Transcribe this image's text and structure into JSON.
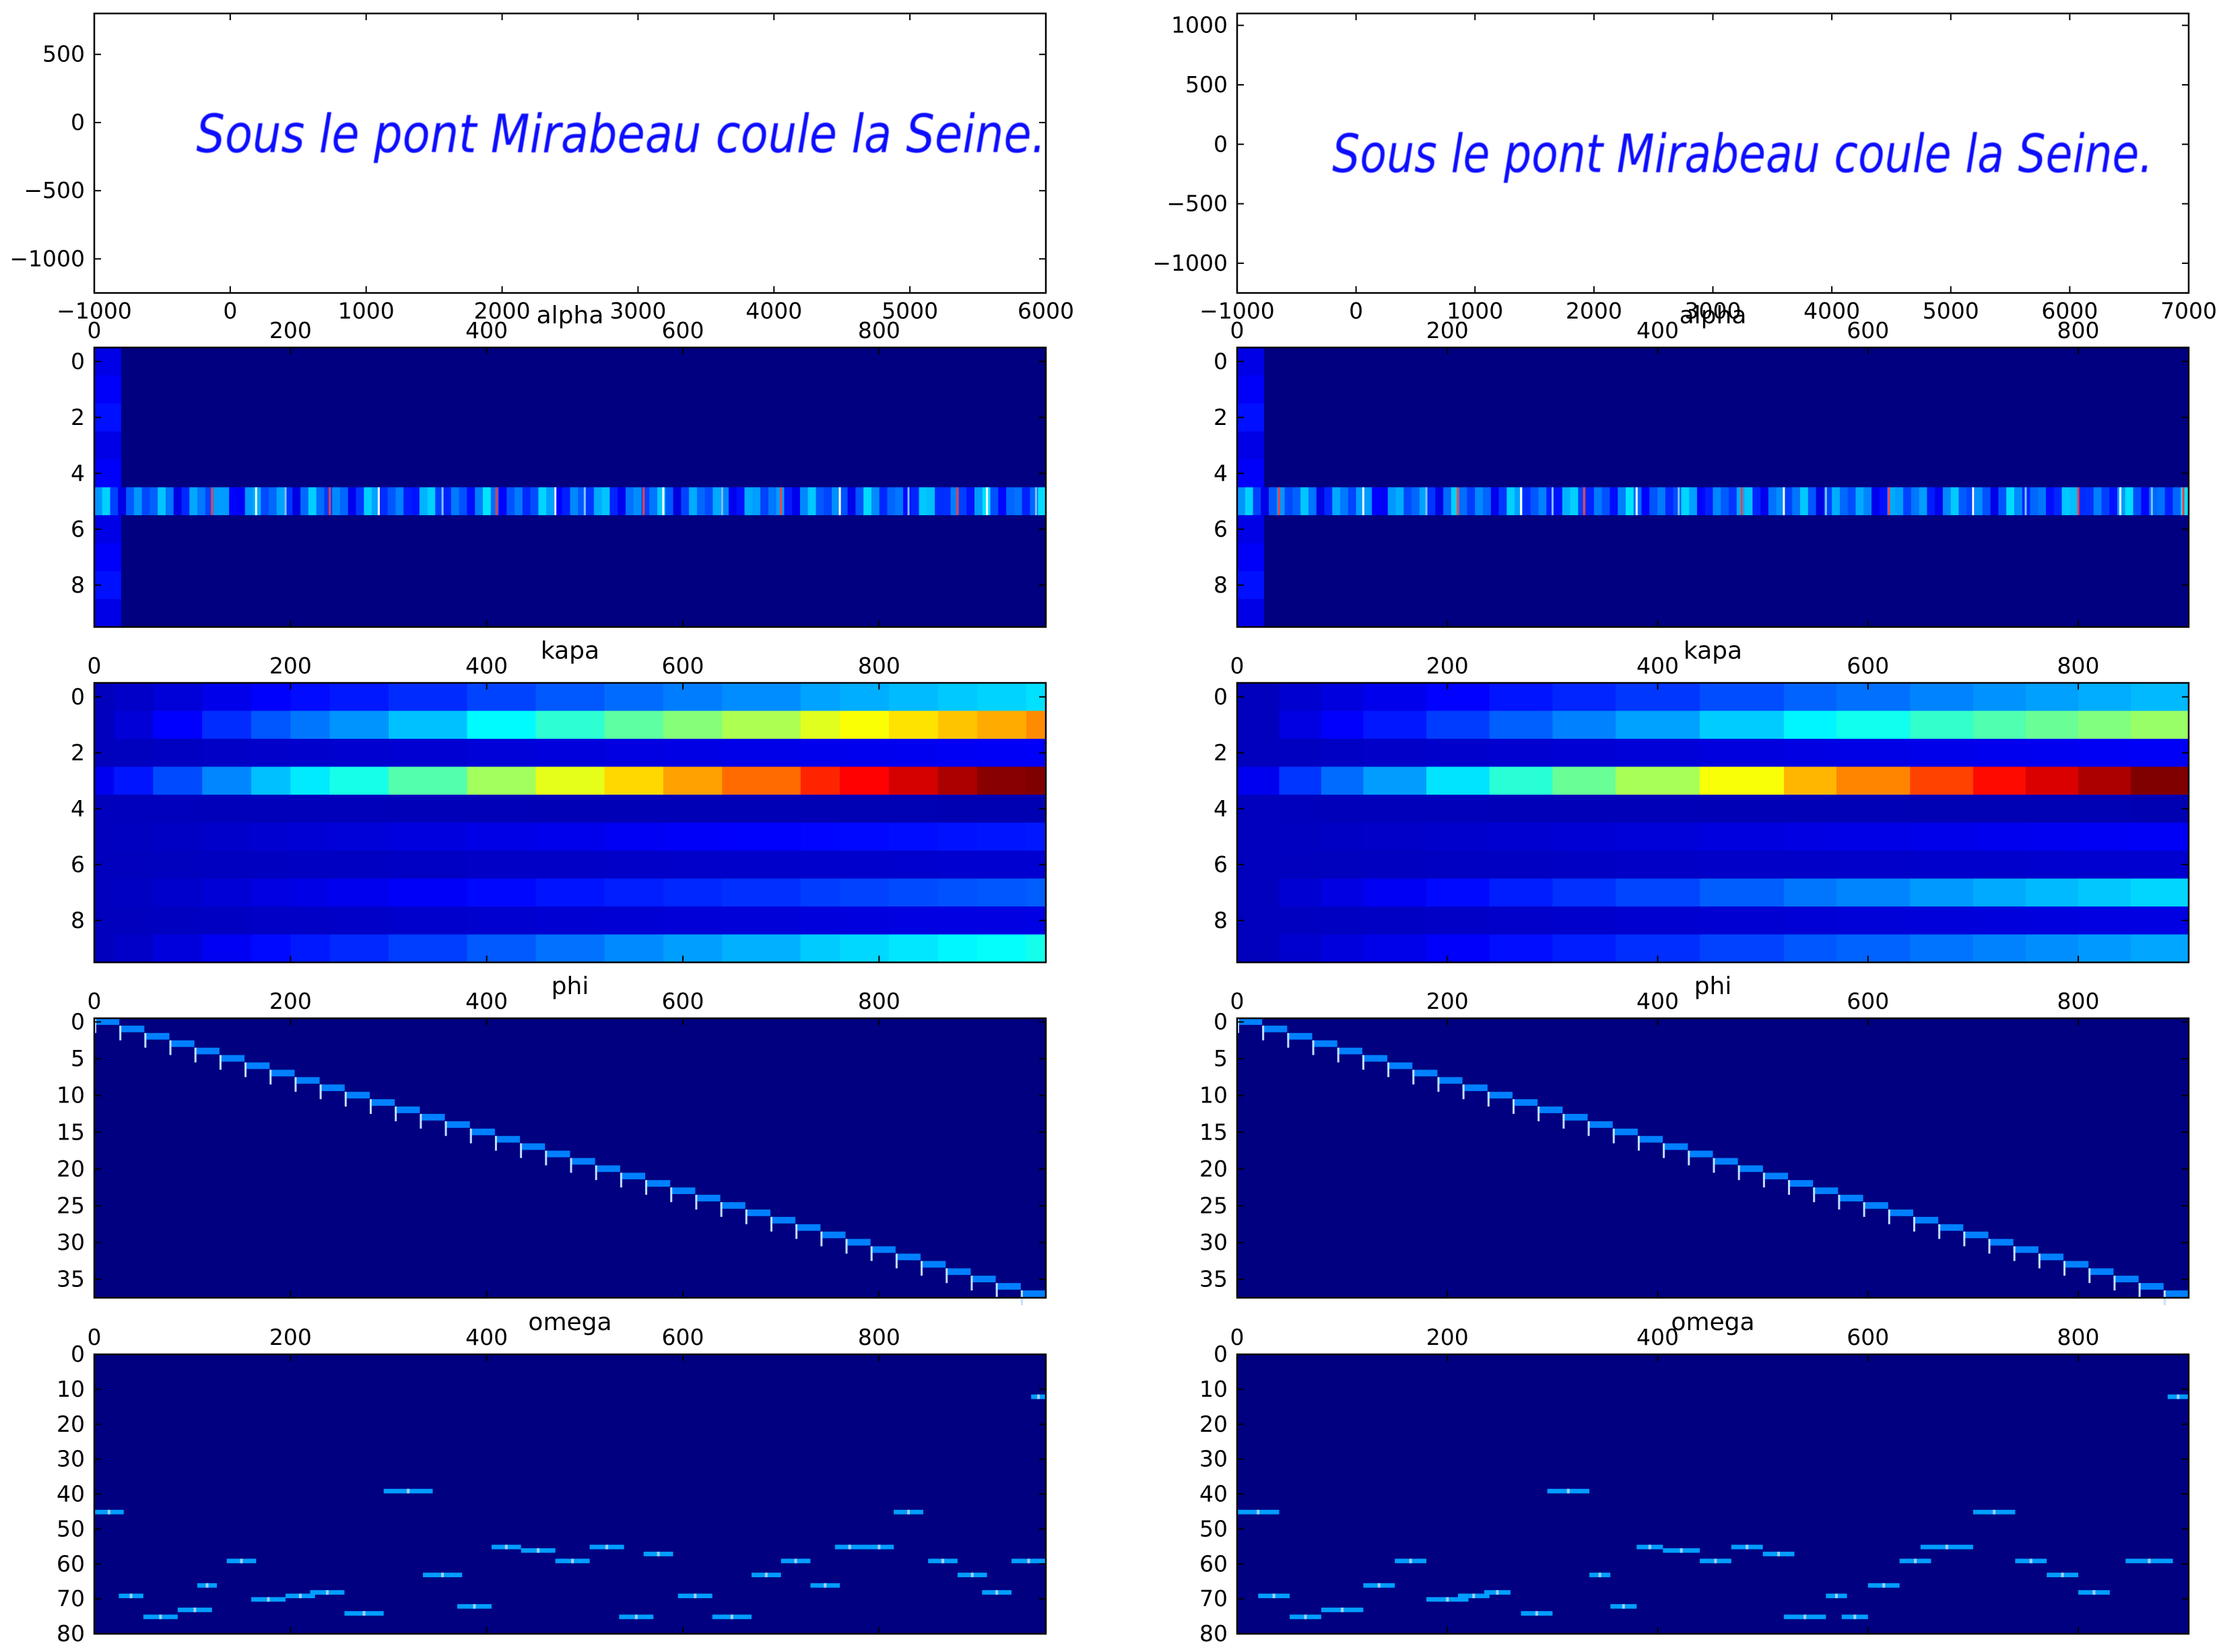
{
  "colors": {
    "ink": "#0a0aff",
    "jet_background": "#000080",
    "axes": "#000000"
  },
  "chart_data": [
    {
      "type": "line",
      "title": "",
      "xlabel": "",
      "ylabel": "",
      "xlim": [
        -1000,
        6000
      ],
      "ylim": [
        -1250,
        800
      ],
      "xticks": [
        "−1000",
        "0",
        "1000",
        "2000",
        "3000",
        "4000",
        "5000",
        "6000"
      ],
      "yticks": [
        "500",
        "0",
        "−500",
        "−1000"
      ],
      "annotation": "Sous le pont Mirabeau coule la Seine.",
      "annotation_style": "handwritten stroke",
      "annotation_x_range": [
        -250,
        6000
      ],
      "annotation_y_center": -120,
      "series": [
        {
          "values_description_only": "handwriting pen trajectory"
        }
      ]
    },
    {
      "type": "line",
      "title": "",
      "xlabel": "",
      "ylabel": "",
      "xlim": [
        -1000,
        7000
      ],
      "ylim": [
        -1250,
        1100
      ],
      "xticks": [
        "−1000",
        "0",
        "1000",
        "2000",
        "3000",
        "4000",
        "5000",
        "6000",
        "7000"
      ],
      "yticks": [
        "1000",
        "500",
        "0",
        "−500",
        "−1000"
      ],
      "annotation": "Sous le pont Mirabeau coule la Seine.",
      "annotation_style": "handwritten stroke",
      "annotation_x_range": [
        -200,
        6700
      ],
      "annotation_y_center": -120,
      "series": [
        {
          "values_description_only": "handwriting pen trajectory"
        }
      ]
    },
    {
      "type": "heatmap",
      "title": "alpha",
      "xlim": [
        0,
        970
      ],
      "ylim": [
        9.5,
        -0.5
      ],
      "xticks": [
        "0",
        "200",
        "400",
        "600",
        "800"
      ],
      "yticks": [
        "0",
        "2",
        "4",
        "6",
        "8"
      ],
      "rows": 10,
      "active_row": 5,
      "spikes": [
        120,
        165,
        195,
        240,
        290,
        355,
        410,
        470,
        500,
        560,
        580,
        640,
        700,
        760,
        830,
        880,
        910,
        960
      ]
    },
    {
      "type": "heatmap",
      "title": "alpha",
      "xlim": [
        0,
        905
      ],
      "ylim": [
        9.5,
        -0.5
      ],
      "xticks": [
        "0",
        "200",
        "400",
        "600",
        "800"
      ],
      "yticks": [
        "0",
        "2",
        "4",
        "6",
        "8"
      ],
      "rows": 10,
      "active_row": 5,
      "spikes": [
        40,
        120,
        180,
        210,
        270,
        300,
        330,
        380,
        420,
        480,
        520,
        560,
        620,
        700,
        750,
        800,
        840,
        870,
        900
      ]
    },
    {
      "type": "heatmap",
      "title": "kapa",
      "xlim": [
        0,
        970
      ],
      "ylim": [
        9.5,
        -0.5
      ],
      "xticks": [
        "0",
        "200",
        "400",
        "600",
        "800"
      ],
      "yticks": [
        "0",
        "2",
        "4",
        "6",
        "8"
      ],
      "rows_final_values": [
        0.35,
        0.75,
        0.12,
        1.0,
        0.05,
        0.15,
        0.08,
        0.22,
        0.1,
        0.4
      ],
      "growth_breaks": [
        0,
        20,
        60,
        110,
        160,
        200,
        240,
        300,
        380,
        450,
        520,
        580,
        640,
        720,
        760,
        810,
        860,
        900,
        950,
        970
      ]
    },
    {
      "type": "heatmap",
      "title": "kapa",
      "xlim": [
        0,
        905
      ],
      "ylim": [
        9.5,
        -0.5
      ],
      "xticks": [
        "0",
        "200",
        "400",
        "600",
        "800"
      ],
      "yticks": [
        "0",
        "2",
        "4",
        "6",
        "8"
      ],
      "rows_final_values": [
        0.32,
        0.55,
        0.12,
        1.0,
        0.05,
        0.12,
        0.08,
        0.35,
        0.1,
        0.3
      ],
      "growth_breaks": [
        0,
        40,
        80,
        120,
        180,
        240,
        300,
        360,
        440,
        520,
        570,
        640,
        700,
        750,
        800,
        850,
        905
      ]
    },
    {
      "type": "heatmap",
      "title": "phi",
      "xlim": [
        0,
        970
      ],
      "ylim": [
        37.5,
        -0.5
      ],
      "xticks": [
        "0",
        "200",
        "400",
        "600",
        "800"
      ],
      "yticks": [
        "0",
        "5",
        "10",
        "15",
        "20",
        "25",
        "30",
        "35"
      ],
      "rows": 38,
      "diagonal": "staircase from (0,0) to (970,37)"
    },
    {
      "type": "heatmap",
      "title": "phi",
      "xlim": [
        0,
        905
      ],
      "ylim": [
        37.5,
        -0.5
      ],
      "xticks": [
        "0",
        "200",
        "400",
        "600",
        "800"
      ],
      "yticks": [
        "0",
        "5",
        "10",
        "15",
        "20",
        "25",
        "30",
        "35"
      ],
      "rows": 38,
      "diagonal": "staircase from (0,0) to (905,37)"
    },
    {
      "type": "heatmap",
      "title": "omega",
      "xlim": [
        0,
        970
      ],
      "ylim": [
        80,
        0
      ],
      "xticks": [
        "0",
        "200",
        "400",
        "600",
        "800"
      ],
      "yticks": [
        "0",
        "10",
        "20",
        "30",
        "40",
        "50",
        "60",
        "70",
        "80"
      ],
      "segments": [
        [
          0,
          30,
          45
        ],
        [
          25,
          50,
          69
        ],
        [
          50,
          85,
          75
        ],
        [
          85,
          120,
          73
        ],
        [
          105,
          125,
          66
        ],
        [
          135,
          165,
          59
        ],
        [
          160,
          195,
          70
        ],
        [
          195,
          225,
          69
        ],
        [
          220,
          255,
          68
        ],
        [
          255,
          295,
          74
        ],
        [
          295,
          345,
          39
        ],
        [
          335,
          375,
          63
        ],
        [
          370,
          405,
          72
        ],
        [
          405,
          435,
          55
        ],
        [
          435,
          470,
          56
        ],
        [
          470,
          505,
          59
        ],
        [
          505,
          540,
          55
        ],
        [
          535,
          570,
          75
        ],
        [
          560,
          590,
          57
        ],
        [
          595,
          630,
          69
        ],
        [
          630,
          670,
          75
        ],
        [
          670,
          700,
          63
        ],
        [
          700,
          730,
          59
        ],
        [
          730,
          760,
          66
        ],
        [
          755,
          785,
          55
        ],
        [
          785,
          815,
          55
        ],
        [
          815,
          845,
          45
        ],
        [
          850,
          880,
          59
        ],
        [
          880,
          910,
          63
        ],
        [
          905,
          935,
          68
        ],
        [
          935,
          970,
          59
        ],
        [
          955,
          970,
          12
        ]
      ]
    },
    {
      "type": "heatmap",
      "title": "omega",
      "xlim": [
        0,
        905
      ],
      "ylim": [
        80,
        0
      ],
      "xticks": [
        "0",
        "200",
        "400",
        "600",
        "800"
      ],
      "yticks": [
        "0",
        "10",
        "20",
        "30",
        "40",
        "50",
        "60",
        "70",
        "80"
      ],
      "segments": [
        [
          0,
          40,
          45
        ],
        [
          20,
          50,
          69
        ],
        [
          50,
          80,
          75
        ],
        [
          80,
          120,
          73
        ],
        [
          120,
          150,
          66
        ],
        [
          150,
          180,
          59
        ],
        [
          180,
          220,
          70
        ],
        [
          210,
          240,
          69
        ],
        [
          235,
          260,
          68
        ],
        [
          270,
          300,
          74
        ],
        [
          295,
          335,
          39
        ],
        [
          335,
          355,
          63
        ],
        [
          355,
          380,
          72
        ],
        [
          380,
          405,
          55
        ],
        [
          405,
          440,
          56
        ],
        [
          440,
          470,
          59
        ],
        [
          470,
          500,
          55
        ],
        [
          500,
          530,
          57
        ],
        [
          520,
          560,
          75
        ],
        [
          560,
          580,
          69
        ],
        [
          575,
          600,
          75
        ],
        [
          600,
          630,
          66
        ],
        [
          630,
          660,
          59
        ],
        [
          650,
          700,
          55
        ],
        [
          700,
          740,
          45
        ],
        [
          740,
          770,
          59
        ],
        [
          770,
          800,
          63
        ],
        [
          800,
          830,
          68
        ],
        [
          845,
          890,
          59
        ],
        [
          885,
          905,
          12
        ]
      ]
    }
  ]
}
